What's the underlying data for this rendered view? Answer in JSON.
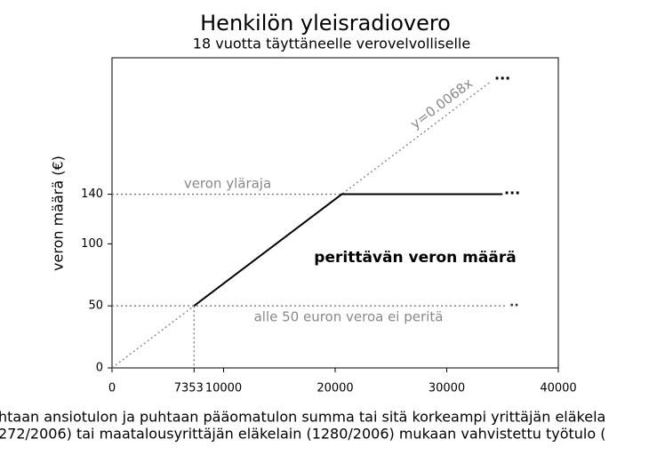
{
  "chart_data": {
    "type": "line",
    "title": "Henkilön yleisradiovero",
    "subtitle": "18 vuotta täyttäneelle verovelvolliselle",
    "ylabel": "veron määrä (€)",
    "xlabel": [
      "htaan ansiotulon ja puhtaan pääomatulon summa tai sitä korkeampi yrittäjän eläkela",
      "272/2006) tai maatalousyrittäjän eläkelain (1280/2006) mukaan vahvistettu työtulo ("
    ],
    "xlim": [
      0,
      40000
    ],
    "ylim": [
      0,
      250
    ],
    "xticks": [
      0,
      7353,
      10000,
      20000,
      30000,
      40000
    ],
    "yticks": [
      0,
      50,
      100,
      140
    ],
    "series": [
      {
        "name": "y=0.0068x",
        "color": "#808080",
        "x": [
          0,
          34000
        ],
        "values": [
          0,
          231.2
        ]
      },
      {
        "name": "perittävän veron määrä",
        "color": "#000000",
        "x": [
          7353,
          20588,
          35000
        ],
        "values": [
          50,
          140,
          140
        ]
      }
    ],
    "annotations": [
      "veron yläraja",
      "alle 50 euron veroa ei peritä"
    ]
  }
}
